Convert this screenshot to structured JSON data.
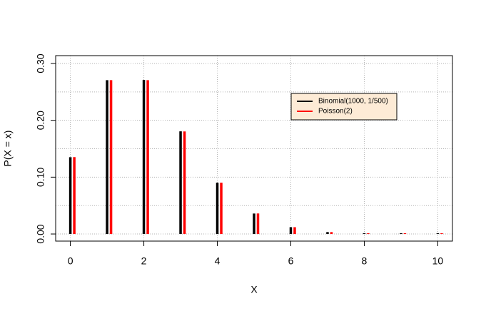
{
  "chart_data": {
    "type": "histogram-lines",
    "x_label": "X",
    "y_label": "P(X = x)",
    "x": [
      0,
      1,
      2,
      3,
      4,
      5,
      6,
      7,
      8,
      9,
      10
    ],
    "series": [
      {
        "name": "Binomial(1000, 1/500)",
        "color": "#000000",
        "values": [
          0.1351,
          0.2707,
          0.2709,
          0.1806,
          0.0902,
          0.036,
          0.012,
          0.0034,
          0.0008,
          0.0002,
          4e-05
        ]
      },
      {
        "name": "Poisson(2)",
        "color": "#ff0000",
        "values": [
          0.1353,
          0.2707,
          0.2707,
          0.1804,
          0.0902,
          0.0361,
          0.012,
          0.0034,
          0.0009,
          0.0002,
          4e-05
        ]
      }
    ],
    "xlim": [
      -0.4,
      10.4
    ],
    "xticks": [
      0,
      2,
      4,
      6,
      8,
      10
    ],
    "ylim": [
      -0.0125,
      0.3138
    ],
    "yticks": [
      {
        "value": 0,
        "label": "0.00"
      },
      {
        "value": 0.1,
        "label": "0.10"
      },
      {
        "value": 0.2,
        "label": "0.20"
      },
      {
        "value": 0.3,
        "label": "0.30"
      }
    ],
    "xgrid": [
      0,
      2,
      4,
      6,
      8,
      10
    ],
    "ygrid": [
      0,
      0.05,
      0.1,
      0.15,
      0.2,
      0.25,
      0.3
    ],
    "legend_position": "top-right",
    "legend_fill": "#fdebd6"
  }
}
